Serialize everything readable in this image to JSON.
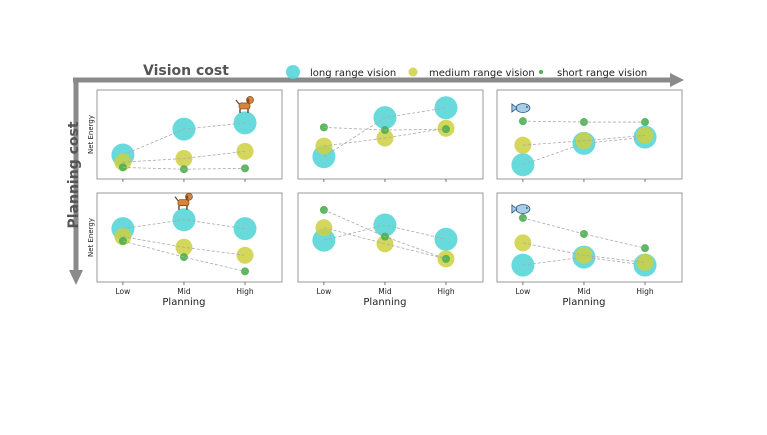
{
  "chart_data": {
    "type": "scatter",
    "x_axis_title": "Vision cost",
    "y_axis_title": "Planning cost",
    "xlabel": "Planning",
    "ylabel": "Net Energy",
    "categories": [
      "Low",
      "Mid",
      "High"
    ],
    "ylim": [
      0,
      1
    ],
    "grid": false,
    "legend_placement": "top",
    "legend": [
      {
        "name": "long range vision",
        "color": "#4fd4d6"
      },
      {
        "name": "medium range vision",
        "color": "#cdd03f"
      },
      {
        "name": "short range vision",
        "color": "#4caf50"
      }
    ],
    "panels": [
      {
        "row": 0,
        "col": 0,
        "icon": "dog-icon",
        "icon_at": "High",
        "series": {
          "long": [
            0.27,
            0.56,
            0.63
          ],
          "medium": [
            0.19,
            0.23,
            0.31
          ],
          "short": [
            0.13,
            0.11,
            0.12
          ]
        }
      },
      {
        "row": 0,
        "col": 1,
        "icon": null,
        "icon_at": null,
        "series": {
          "long": [
            0.25,
            0.69,
            0.8
          ],
          "medium": [
            0.37,
            0.46,
            0.57
          ],
          "short": [
            0.58,
            0.55,
            0.56
          ]
        }
      },
      {
        "row": 0,
        "col": 2,
        "icon": "fish-icon",
        "icon_at": "Low",
        "series": {
          "long": [
            0.16,
            0.4,
            0.47
          ],
          "medium": [
            0.38,
            0.43,
            0.49
          ],
          "short": [
            0.65,
            0.64,
            0.64
          ]
        }
      },
      {
        "row": 1,
        "col": 0,
        "icon": "dog-icon",
        "icon_at": "Mid",
        "series": {
          "long": [
            0.6,
            0.7,
            0.6
          ],
          "medium": [
            0.51,
            0.39,
            0.3
          ],
          "short": [
            0.46,
            0.28,
            0.12
          ]
        }
      },
      {
        "row": 1,
        "col": 1,
        "icon": null,
        "icon_at": null,
        "series": {
          "long": [
            0.47,
            0.64,
            0.48
          ],
          "medium": [
            0.61,
            0.43,
            0.26
          ],
          "short": [
            0.81,
            0.51,
            0.26
          ]
        }
      },
      {
        "row": 1,
        "col": 2,
        "icon": "fish-icon",
        "icon_at": "Low",
        "series": {
          "long": [
            0.19,
            0.28,
            0.19
          ],
          "medium": [
            0.44,
            0.3,
            0.22
          ],
          "short": [
            0.72,
            0.54,
            0.38
          ]
        }
      }
    ]
  }
}
